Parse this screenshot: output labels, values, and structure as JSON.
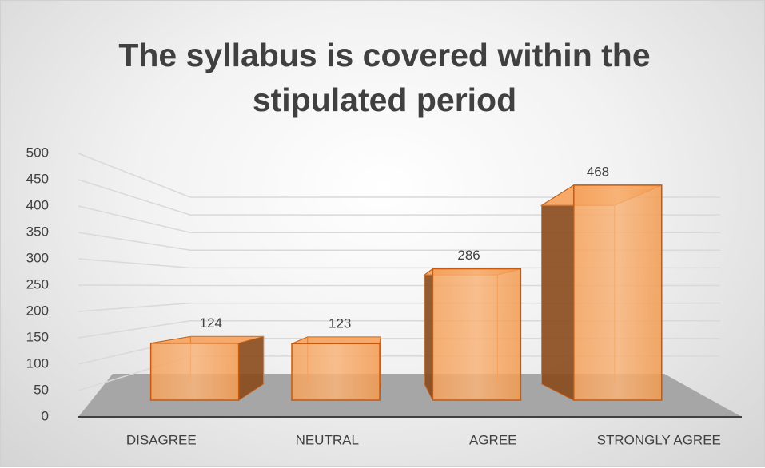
{
  "chart_data": {
    "type": "bar",
    "title": "The syllabus is covered within the stipulated period",
    "categories": [
      "DISAGREE",
      "NEUTRAL",
      "AGREE",
      "STRONGLY AGREE"
    ],
    "values": [
      124,
      123,
      286,
      468
    ],
    "color": "#f4a460",
    "ylim": [
      0,
      500
    ],
    "yticks": [
      0,
      50,
      100,
      150,
      200,
      250,
      300,
      350,
      400,
      450,
      500
    ],
    "grid": true
  }
}
